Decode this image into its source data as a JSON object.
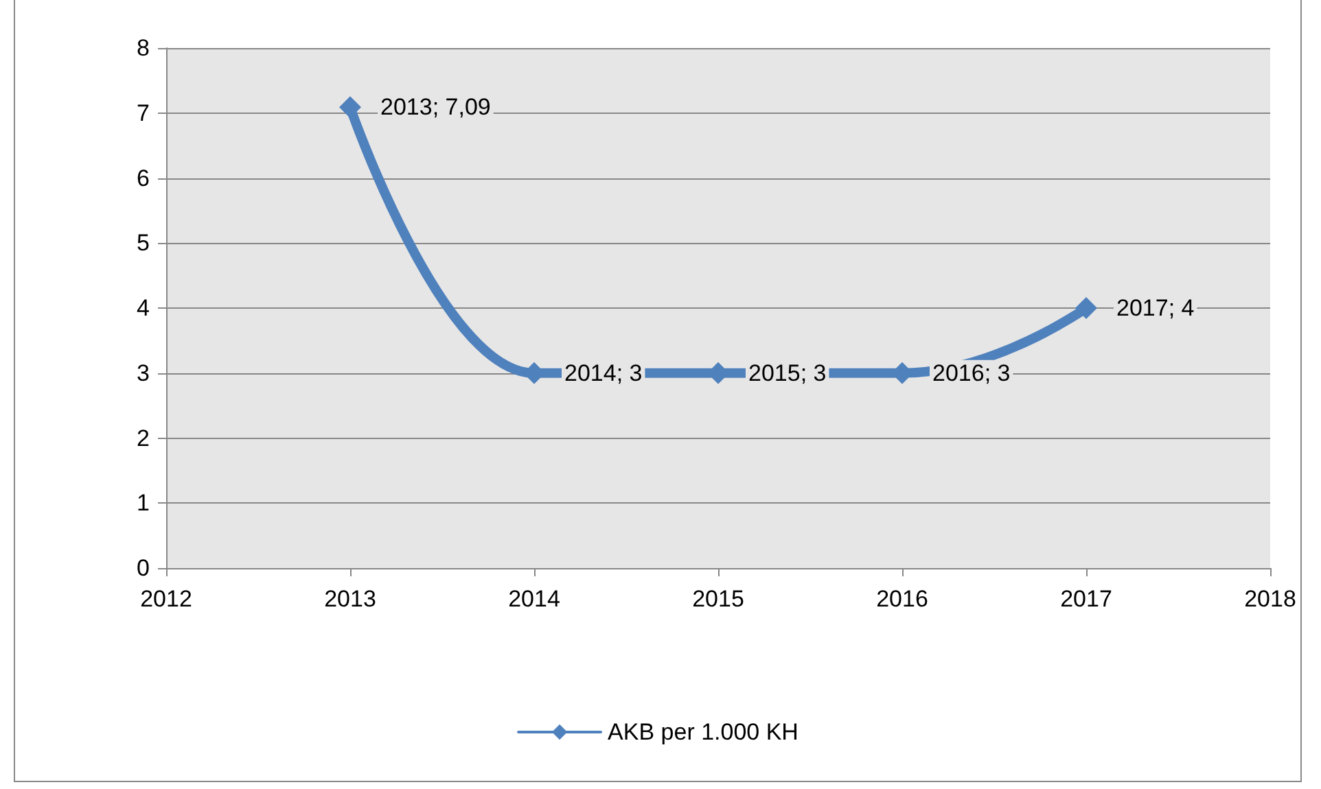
{
  "chart_data": {
    "type": "line",
    "x": [
      2013,
      2014,
      2015,
      2016,
      2017
    ],
    "series": [
      {
        "name": "AKB per 1.000 KH",
        "color": "#4f81bd",
        "values": [
          7.09,
          3,
          3,
          3,
          4
        ],
        "value_labels": [
          "2013; 7,09",
          "2014; 3",
          "2015; 3",
          "2016; 3",
          "2017; 4"
        ]
      }
    ],
    "xlim": [
      2012,
      2018
    ],
    "xticks": [
      2012,
      2013,
      2014,
      2015,
      2016,
      2017,
      2018
    ],
    "ylim": [
      0,
      8
    ],
    "yticks": [
      0,
      1,
      2,
      3,
      4,
      5,
      6,
      7,
      8
    ],
    "grid": "y",
    "legend": "bottom",
    "marker": "diamond",
    "line_style": "solid"
  }
}
